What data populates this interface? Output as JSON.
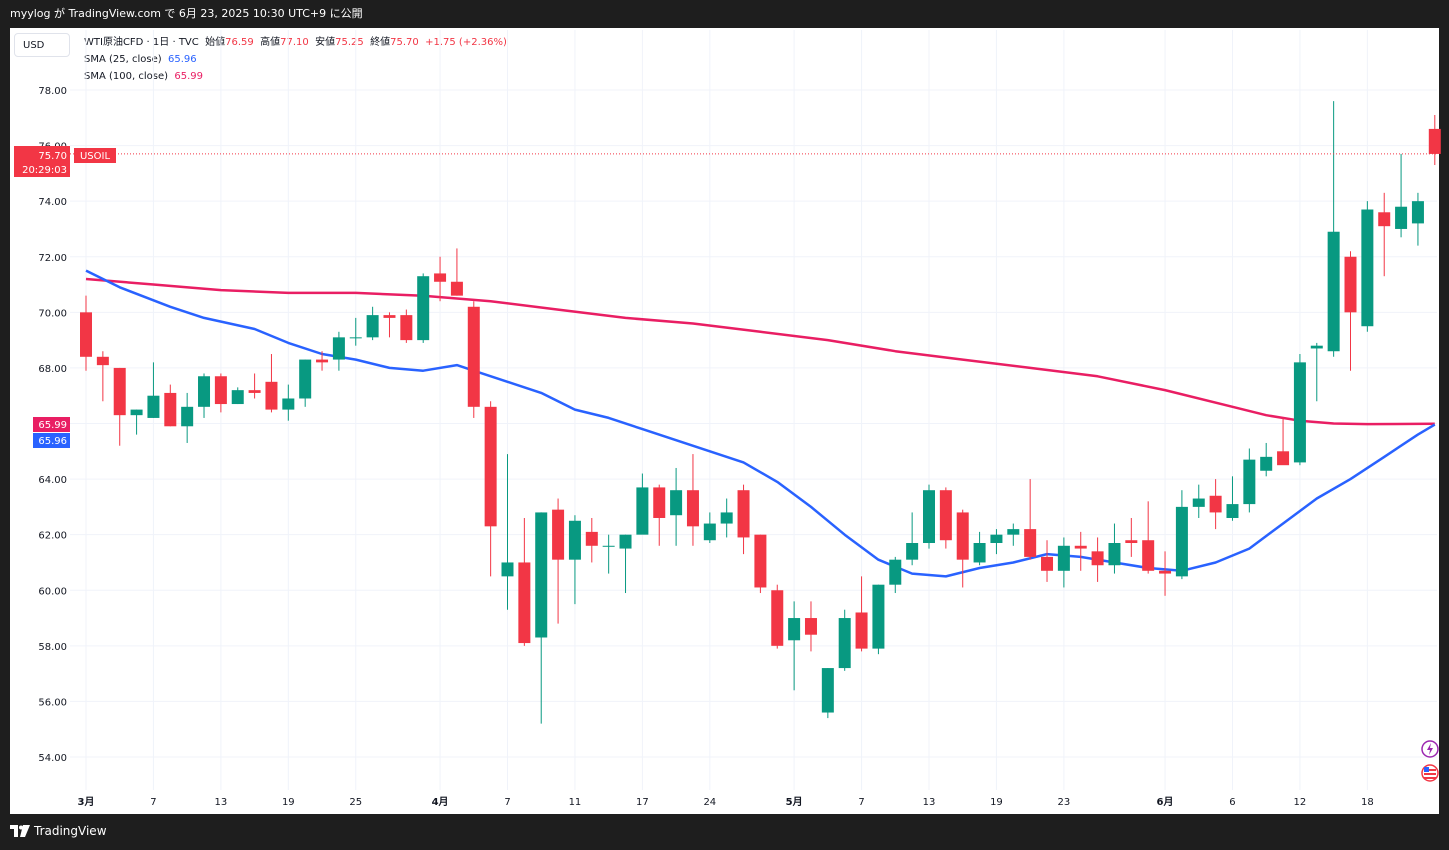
{
  "header": {
    "publish_line": "myylog が TradingView.com で 6月 23, 2025 10:30 UTC+9 に公開"
  },
  "toolbar": {
    "currency": "USD"
  },
  "legend": {
    "symbol": "WTI原油CFD · 1日 · TVC",
    "open_label": "始値",
    "open_value": "76.59",
    "high_label": "高値",
    "high_value": "77.10",
    "low_label": "安値",
    "low_value": "75.25",
    "close_label": "終値",
    "close_value": "75.70",
    "change": "+1.75 (+2.36%)",
    "sma25_label": "SMA (25, close)",
    "sma25_value": "65.96",
    "sma100_label": "SMA (100, close)",
    "sma100_value": "65.99"
  },
  "price_labels": {
    "last_price": "75.70",
    "symbol_tag": "USOIL",
    "countdown": "20:29:03",
    "sma100": "65.99",
    "sma25": "65.96"
  },
  "footer": {
    "brand": "TradingView"
  },
  "colors": {
    "up": "#089981",
    "down": "#f23645",
    "sma25": "#2962ff",
    "sma100": "#e91e63",
    "grid": "#f0f3fa"
  },
  "chart_data": {
    "type": "candlestick",
    "y_ticks": [
      "54.00",
      "56.00",
      "58.00",
      "60.00",
      "62.00",
      "64.00",
      "66.00",
      "68.00",
      "70.00",
      "72.00",
      "74.00",
      "76.00",
      "78.00"
    ],
    "ylim": [
      53.0,
      80.4
    ],
    "x_labels": [
      {
        "label": "3月",
        "i": 0,
        "bold": true
      },
      {
        "label": "7",
        "i": 4,
        "bold": false
      },
      {
        "label": "13",
        "i": 8,
        "bold": false
      },
      {
        "label": "19",
        "i": 12,
        "bold": false
      },
      {
        "label": "25",
        "i": 16,
        "bold": false
      },
      {
        "label": "4月",
        "i": 21,
        "bold": true
      },
      {
        "label": "7",
        "i": 25,
        "bold": false
      },
      {
        "label": "11",
        "i": 29,
        "bold": false
      },
      {
        "label": "17",
        "i": 33,
        "bold": false
      },
      {
        "label": "24",
        "i": 37,
        "bold": false
      },
      {
        "label": "5月",
        "i": 42,
        "bold": true
      },
      {
        "label": "7",
        "i": 46,
        "bold": false
      },
      {
        "label": "13",
        "i": 50,
        "bold": false
      },
      {
        "label": "19",
        "i": 54,
        "bold": false
      },
      {
        "label": "23",
        "i": 58,
        "bold": false
      },
      {
        "label": "6月",
        "i": 64,
        "bold": true
      },
      {
        "label": "6",
        "i": 68,
        "bold": false
      },
      {
        "label": "12",
        "i": 72,
        "bold": false
      },
      {
        "label": "18",
        "i": 76,
        "bold": false
      }
    ],
    "ohlc": [
      [
        70.0,
        70.6,
        67.9,
        68.4
      ],
      [
        68.4,
        68.6,
        66.8,
        68.1
      ],
      [
        68.0,
        68.0,
        65.2,
        66.3
      ],
      [
        66.3,
        66.5,
        65.6,
        66.5
      ],
      [
        66.2,
        68.2,
        66.2,
        67.0
      ],
      [
        67.1,
        67.4,
        65.9,
        65.9
      ],
      [
        65.9,
        67.1,
        65.3,
        66.6
      ],
      [
        66.6,
        67.8,
        66.2,
        67.7
      ],
      [
        67.7,
        67.8,
        66.4,
        66.7
      ],
      [
        66.7,
        67.3,
        66.7,
        67.2
      ],
      [
        67.2,
        67.8,
        66.9,
        67.1
      ],
      [
        67.5,
        68.5,
        66.4,
        66.5
      ],
      [
        66.5,
        67.4,
        66.1,
        66.9
      ],
      [
        66.9,
        68.3,
        66.6,
        68.3
      ],
      [
        68.3,
        68.6,
        67.9,
        68.2
      ],
      [
        68.3,
        69.3,
        67.9,
        69.1
      ],
      [
        69.1,
        69.8,
        68.8,
        69.1
      ],
      [
        69.1,
        70.2,
        69.0,
        69.9
      ],
      [
        69.9,
        70.0,
        69.1,
        69.8
      ],
      [
        69.9,
        70.1,
        68.9,
        69.0
      ],
      [
        69.0,
        71.4,
        68.9,
        71.3
      ],
      [
        71.4,
        72.0,
        70.4,
        71.1
      ],
      [
        71.1,
        72.3,
        70.6,
        70.6
      ],
      [
        70.2,
        70.4,
        66.2,
        66.6
      ],
      [
        66.6,
        66.8,
        60.5,
        62.3
      ],
      [
        60.5,
        64.9,
        59.3,
        61.0
      ],
      [
        61.0,
        62.6,
        58.0,
        58.1
      ],
      [
        58.3,
        62.8,
        55.2,
        62.8
      ],
      [
        62.9,
        63.3,
        58.8,
        61.1
      ],
      [
        61.1,
        62.7,
        59.5,
        62.5
      ],
      [
        62.1,
        62.6,
        61.0,
        61.6
      ],
      [
        61.6,
        62.0,
        60.6,
        61.6
      ],
      [
        61.5,
        62.0,
        59.9,
        62.0
      ],
      [
        62.0,
        64.2,
        62.1,
        63.7
      ],
      [
        63.7,
        63.8,
        61.6,
        62.6
      ],
      [
        62.7,
        64.4,
        61.6,
        63.6
      ],
      [
        63.6,
        64.9,
        61.6,
        62.3
      ],
      [
        61.8,
        62.8,
        61.7,
        62.4
      ],
      [
        62.4,
        63.3,
        61.9,
        62.8
      ],
      [
        63.6,
        63.8,
        61.3,
        61.9
      ],
      [
        62.0,
        62.0,
        59.9,
        60.1
      ],
      [
        60.0,
        60.2,
        57.9,
        58.0
      ],
      [
        58.2,
        59.6,
        56.4,
        59.0
      ],
      [
        59.0,
        59.6,
        57.8,
        58.4
      ],
      [
        55.6,
        57.2,
        55.4,
        57.2
      ],
      [
        57.2,
        59.3,
        57.1,
        59.0
      ],
      [
        59.2,
        60.5,
        57.8,
        57.9
      ],
      [
        57.9,
        60.2,
        57.7,
        60.2
      ],
      [
        60.2,
        61.2,
        59.9,
        61.1
      ],
      [
        61.1,
        62.8,
        60.9,
        61.7
      ],
      [
        61.7,
        63.8,
        61.5,
        63.6
      ],
      [
        63.6,
        63.7,
        61.5,
        61.8
      ],
      [
        62.8,
        62.9,
        60.1,
        61.1
      ],
      [
        61.0,
        62.1,
        60.9,
        61.7
      ],
      [
        61.7,
        62.2,
        61.3,
        62.0
      ],
      [
        62.0,
        62.4,
        61.6,
        62.2
      ],
      [
        62.2,
        64.0,
        61.1,
        61.2
      ],
      [
        61.2,
        61.8,
        60.3,
        60.7
      ],
      [
        60.7,
        61.9,
        60.1,
        61.6
      ],
      [
        61.6,
        62.1,
        60.7,
        61.5
      ],
      [
        61.4,
        61.9,
        60.3,
        60.9
      ],
      [
        60.9,
        62.4,
        60.6,
        61.7
      ],
      [
        61.8,
        62.6,
        61.2,
        61.7
      ],
      [
        61.8,
        63.2,
        60.6,
        60.7
      ],
      [
        60.7,
        61.4,
        59.8,
        60.6
      ],
      [
        60.5,
        63.6,
        60.4,
        63.0
      ],
      [
        63.0,
        63.8,
        62.6,
        63.3
      ],
      [
        63.4,
        64.0,
        62.2,
        62.8
      ],
      [
        62.6,
        64.1,
        62.5,
        63.1
      ],
      [
        63.1,
        65.1,
        62.8,
        64.7
      ],
      [
        64.3,
        65.3,
        64.1,
        64.8
      ],
      [
        65.0,
        66.2,
        64.6,
        64.5
      ],
      [
        64.6,
        68.5,
        64.5,
        68.2
      ],
      [
        68.7,
        68.9,
        66.8,
        68.8
      ],
      [
        68.6,
        77.6,
        68.4,
        72.9
      ],
      [
        72.0,
        72.2,
        67.9,
        70.0
      ],
      [
        69.5,
        74.0,
        69.3,
        73.7
      ],
      [
        73.6,
        74.3,
        71.3,
        73.1
      ],
      [
        73.0,
        75.7,
        72.7,
        73.8
      ],
      [
        73.2,
        74.3,
        72.4,
        74.0
      ],
      [
        76.6,
        77.1,
        75.3,
        75.7
      ]
    ],
    "sma25": [
      [
        0,
        71.5
      ],
      [
        2,
        70.9
      ],
      [
        5,
        70.2
      ],
      [
        7,
        69.8
      ],
      [
        10,
        69.4
      ],
      [
        12,
        68.9
      ],
      [
        14,
        68.5
      ],
      [
        16,
        68.3
      ],
      [
        18,
        68.0
      ],
      [
        20,
        67.9
      ],
      [
        22,
        68.1
      ],
      [
        23,
        67.9
      ],
      [
        25,
        67.5
      ],
      [
        27,
        67.1
      ],
      [
        29,
        66.5
      ],
      [
        31,
        66.2
      ],
      [
        33,
        65.8
      ],
      [
        35,
        65.4
      ],
      [
        37,
        65.0
      ],
      [
        39,
        64.6
      ],
      [
        41,
        63.9
      ],
      [
        43,
        63.0
      ],
      [
        45,
        62.0
      ],
      [
        47,
        61.1
      ],
      [
        49,
        60.6
      ],
      [
        51,
        60.5
      ],
      [
        53,
        60.8
      ],
      [
        55,
        61.0
      ],
      [
        57,
        61.3
      ],
      [
        59,
        61.2
      ],
      [
        61,
        61.0
      ],
      [
        63,
        60.8
      ],
      [
        65,
        60.7
      ],
      [
        67,
        61.0
      ],
      [
        69,
        61.5
      ],
      [
        71,
        62.4
      ],
      [
        73,
        63.3
      ],
      [
        75,
        64.0
      ],
      [
        77,
        64.8
      ],
      [
        79,
        65.6
      ],
      [
        80,
        65.96
      ]
    ],
    "sma100": [
      [
        0,
        71.2
      ],
      [
        4,
        71.0
      ],
      [
        8,
        70.8
      ],
      [
        12,
        70.7
      ],
      [
        16,
        70.7
      ],
      [
        20,
        70.6
      ],
      [
        24,
        70.4
      ],
      [
        28,
        70.1
      ],
      [
        32,
        69.8
      ],
      [
        36,
        69.6
      ],
      [
        40,
        69.3
      ],
      [
        44,
        69.0
      ],
      [
        48,
        68.6
      ],
      [
        52,
        68.3
      ],
      [
        56,
        68.0
      ],
      [
        60,
        67.7
      ],
      [
        64,
        67.2
      ],
      [
        68,
        66.6
      ],
      [
        70,
        66.3
      ],
      [
        72,
        66.1
      ],
      [
        74,
        66.0
      ],
      [
        76,
        65.98
      ],
      [
        80,
        65.99
      ]
    ],
    "last_price": 75.7
  }
}
